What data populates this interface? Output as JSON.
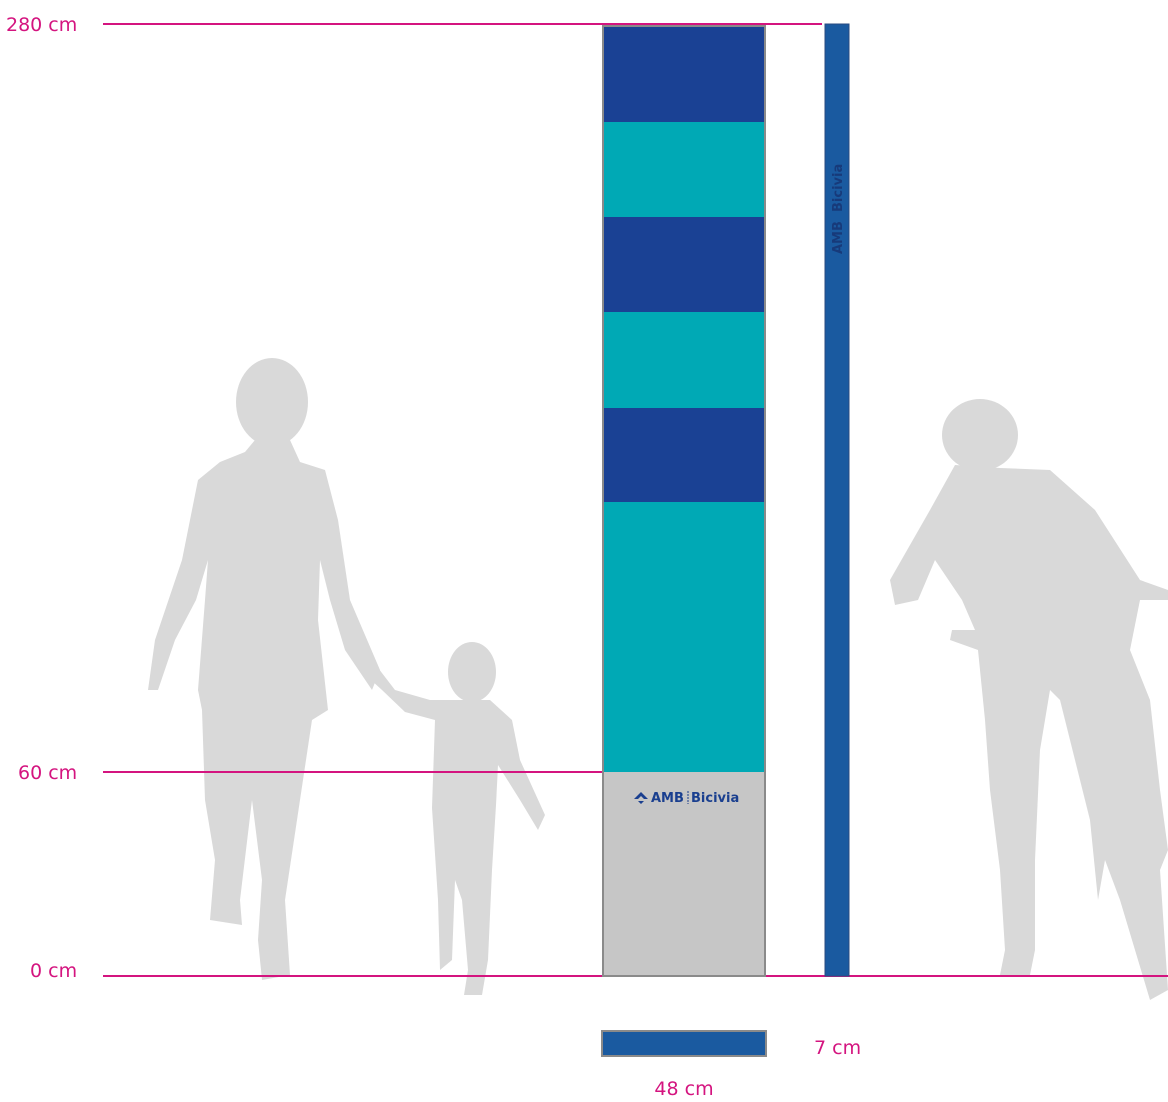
{
  "dimensions": {
    "heights": [
      "280 cm",
      "60 cm",
      "0 cm"
    ],
    "depth": "7 cm",
    "width": "48 cm"
  },
  "logo": {
    "front": [
      "AMB",
      "Bicivia"
    ],
    "side": [
      "AMB",
      "Bicivia"
    ]
  }
}
